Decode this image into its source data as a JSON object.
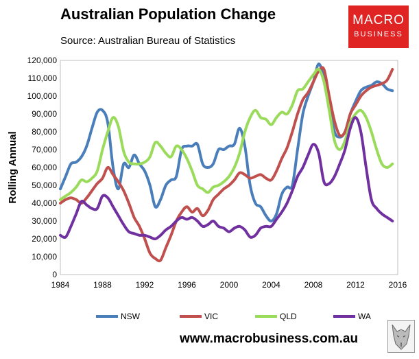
{
  "header": {
    "title": "Australian Population Change",
    "subtitle": "Source: Australian Bureau of Statistics"
  },
  "logo": {
    "line1": "MACRO",
    "line2": "BUSINESS",
    "color": "#e02424"
  },
  "footer": {
    "website": "www.macrobusiness.com.au",
    "logo_icon": "wolf-icon"
  },
  "chart_data": {
    "type": "line",
    "title": "Australian Population Change",
    "subtitle": "Source: Australian Bureau of Statistics",
    "xlabel": "",
    "ylabel": "Rolling Annual",
    "xlim": [
      1984,
      2016
    ],
    "ylim": [
      0,
      120000
    ],
    "x_ticks": [
      1984,
      1988,
      1992,
      1996,
      2000,
      2004,
      2008,
      2012,
      2016
    ],
    "y_ticks": [
      0,
      10000,
      20000,
      30000,
      40000,
      50000,
      60000,
      70000,
      80000,
      90000,
      100000,
      110000,
      120000
    ],
    "y_tick_labels": [
      "0",
      "10,000",
      "20,000",
      "30,000",
      "40,000",
      "50,000",
      "60,000",
      "70,000",
      "80,000",
      "90,000",
      "100,000",
      "110,000",
      "120,000"
    ],
    "x_tick_labels": [
      "1984",
      "1988",
      "1992",
      "1996",
      "2000",
      "2004",
      "2008",
      "2012",
      "2016"
    ],
    "grid": false,
    "legend": "bottom",
    "series": [
      {
        "name": "NSW",
        "color": "#4a7ebb",
        "x": [
          1984,
          1984.5,
          1985,
          1985.5,
          1986,
          1986.5,
          1987,
          1987.5,
          1988,
          1988.5,
          1989,
          1989.5,
          1990,
          1990.5,
          1991,
          1991.5,
          1992,
          1992.5,
          1993,
          1993.5,
          1994,
          1994.5,
          1995,
          1995.5,
          1996,
          1996.5,
          1997,
          1997.5,
          1998,
          1998.5,
          1999,
          1999.5,
          2000,
          2000.5,
          2001,
          2001.5,
          2002,
          2002.5,
          2003,
          2003.5,
          2004,
          2004.5,
          2005,
          2005.5,
          2006,
          2006.5,
          2007,
          2007.5,
          2008,
          2008.5,
          2009,
          2009.5,
          2010,
          2010.5,
          2011,
          2011.5,
          2012,
          2012.5,
          2013,
          2013.5,
          2014,
          2014.5,
          2015,
          2015.5
        ],
        "values": [
          48000,
          55000,
          62000,
          63000,
          66000,
          72000,
          82000,
          91000,
          92000,
          85000,
          60000,
          48000,
          62000,
          60000,
          67000,
          62000,
          58000,
          50000,
          38000,
          42000,
          50000,
          53000,
          55000,
          70000,
          72000,
          72000,
          73000,
          62000,
          60000,
          62000,
          70000,
          70000,
          72000,
          73000,
          82000,
          72000,
          50000,
          40000,
          38000,
          33000,
          30000,
          34000,
          45000,
          49000,
          50000,
          70000,
          90000,
          100000,
          108000,
          118000,
          110000,
          95000,
          80000,
          77000,
          80000,
          90000,
          97000,
          103000,
          105000,
          106000,
          108000,
          107000,
          104000,
          103000
        ]
      },
      {
        "name": "VIC",
        "color": "#c0504d",
        "x": [
          1984,
          1984.5,
          1985,
          1985.5,
          1986,
          1986.5,
          1987,
          1987.5,
          1988,
          1988.5,
          1989,
          1989.5,
          1990,
          1990.5,
          1991,
          1991.5,
          1992,
          1992.5,
          1993,
          1993.5,
          1994,
          1994.5,
          1995,
          1995.5,
          1996,
          1996.5,
          1997,
          1997.5,
          1998,
          1998.5,
          1999,
          1999.5,
          2000,
          2000.5,
          2001,
          2001.5,
          2002,
          2002.5,
          2003,
          2003.5,
          2004,
          2004.5,
          2005,
          2005.5,
          2006,
          2006.5,
          2007,
          2007.5,
          2008,
          2008.5,
          2009,
          2009.5,
          2010,
          2010.5,
          2011,
          2011.5,
          2012,
          2012.5,
          2013,
          2013.5,
          2014,
          2014.5,
          2015,
          2015.5
        ],
        "values": [
          40000,
          42000,
          43000,
          42000,
          40000,
          43000,
          47000,
          51000,
          54000,
          60000,
          56000,
          52000,
          47000,
          40000,
          32000,
          27000,
          20000,
          12000,
          9000,
          8000,
          15000,
          22000,
          30000,
          35000,
          38000,
          35000,
          37000,
          33000,
          36000,
          42000,
          45000,
          48000,
          50000,
          53000,
          57000,
          56000,
          54000,
          55000,
          56000,
          54000,
          53000,
          58000,
          65000,
          71000,
          80000,
          90000,
          98000,
          102000,
          108000,
          114000,
          115000,
          100000,
          86000,
          78000,
          80000,
          90000,
          95000,
          100000,
          103000,
          105000,
          106000,
          107000,
          109000,
          115000
        ]
      },
      {
        "name": "QLD",
        "color": "#9bdb5b",
        "x": [
          1984,
          1984.5,
          1985,
          1985.5,
          1986,
          1986.5,
          1987,
          1987.5,
          1988,
          1988.5,
          1989,
          1989.5,
          1990,
          1990.5,
          1991,
          1991.5,
          1992,
          1992.5,
          1993,
          1993.5,
          1994,
          1994.5,
          1995,
          1995.5,
          1996,
          1996.5,
          1997,
          1997.5,
          1998,
          1998.5,
          1999,
          1999.5,
          2000,
          2000.5,
          2001,
          2001.5,
          2002,
          2002.5,
          2003,
          2003.5,
          2004,
          2004.5,
          2005,
          2005.5,
          2006,
          2006.5,
          2007,
          2007.5,
          2008,
          2008.5,
          2009,
          2009.5,
          2010,
          2010.5,
          2011,
          2011.5,
          2012,
          2012.5,
          2013,
          2013.5,
          2014,
          2014.5,
          2015,
          2015.5
        ],
        "values": [
          42000,
          44000,
          46000,
          49000,
          53000,
          52000,
          54000,
          58000,
          70000,
          80000,
          88000,
          83000,
          69000,
          63000,
          62000,
          62000,
          63000,
          66000,
          74000,
          72000,
          68000,
          66000,
          72000,
          70000,
          65000,
          58000,
          50000,
          48000,
          46000,
          49000,
          50000,
          52000,
          55000,
          60000,
          68000,
          80000,
          88000,
          92000,
          88000,
          87000,
          84000,
          88000,
          91000,
          90000,
          95000,
          103000,
          104000,
          108000,
          112000,
          115000,
          108000,
          92000,
          75000,
          70000,
          75000,
          85000,
          90000,
          92000,
          88000,
          80000,
          70000,
          62000,
          60000,
          62000
        ]
      },
      {
        "name": "WA",
        "color": "#7030a0",
        "x": [
          1984,
          1984.5,
          1985,
          1985.5,
          1986,
          1986.5,
          1987,
          1987.5,
          1988,
          1988.5,
          1989,
          1989.5,
          1990,
          1990.5,
          1991,
          1991.5,
          1992,
          1992.5,
          1993,
          1993.5,
          1994,
          1994.5,
          1995,
          1995.5,
          1996,
          1996.5,
          1997,
          1997.5,
          1998,
          1998.5,
          1999,
          1999.5,
          2000,
          2000.5,
          2001,
          2001.5,
          2002,
          2002.5,
          2003,
          2003.5,
          2004,
          2004.5,
          2005,
          2005.5,
          2006,
          2006.5,
          2007,
          2007.5,
          2008,
          2008.5,
          2009,
          2009.5,
          2010,
          2010.5,
          2011,
          2011.5,
          2012,
          2012.5,
          2013,
          2013.5,
          2014,
          2014.5,
          2015,
          2015.5
        ],
        "values": [
          22000,
          21000,
          27000,
          34000,
          41000,
          39000,
          37000,
          37000,
          44000,
          43000,
          38000,
          33000,
          28000,
          24000,
          23000,
          22000,
          22000,
          21000,
          20000,
          22000,
          25000,
          27000,
          30000,
          32000,
          31000,
          32000,
          30000,
          27000,
          28000,
          30000,
          27000,
          26000,
          24000,
          26000,
          27000,
          25000,
          21000,
          22000,
          26000,
          27000,
          27000,
          31000,
          35000,
          40000,
          47000,
          55000,
          60000,
          67000,
          73000,
          68000,
          52000,
          51000,
          55000,
          62000,
          70000,
          82000,
          88000,
          80000,
          60000,
          42000,
          37000,
          34000,
          32000,
          30000
        ]
      }
    ]
  }
}
